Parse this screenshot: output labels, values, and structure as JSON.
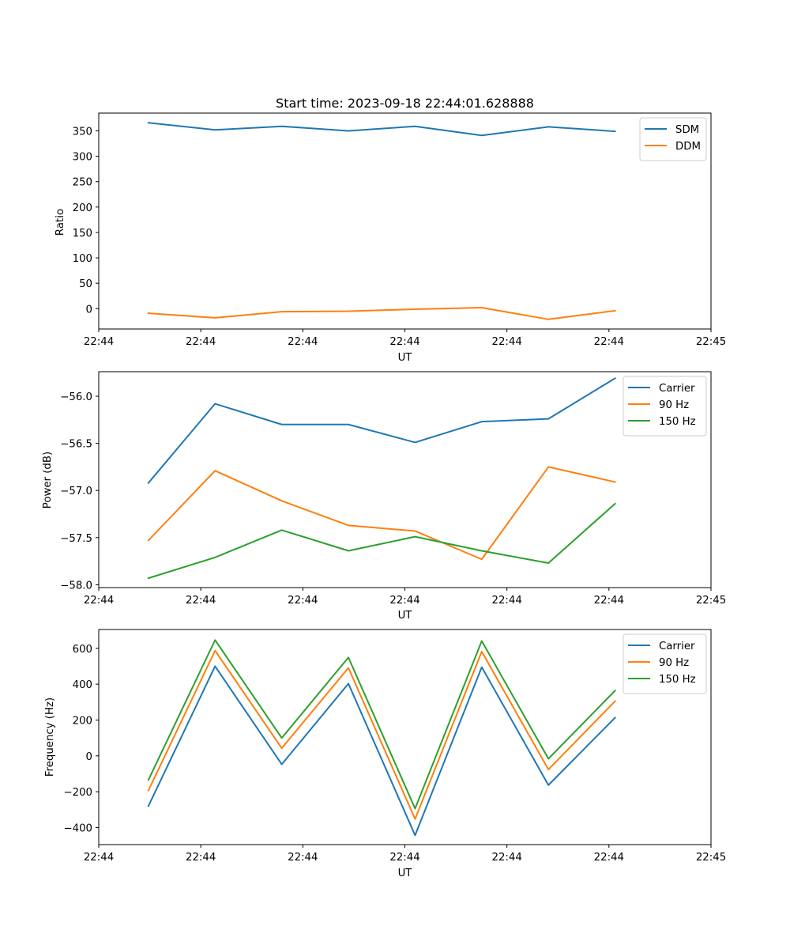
{
  "chart_data": [
    {
      "id": "ratio",
      "type": "line",
      "title": "Start time: 2023-09-18 22:44:01.628888",
      "xlabel": "UT",
      "ylabel": "Ratio",
      "xlim": [
        0,
        9
      ],
      "ylim": [
        -40,
        385
      ],
      "x_ticks": [
        0,
        1.5,
        3,
        4.5,
        6,
        7.5,
        9
      ],
      "x_tick_labels": [
        "22:44",
        "22:44",
        "22:44",
        "22:44",
        "22:44",
        "22:44",
        "22:45"
      ],
      "y_ticks": [
        0,
        50,
        100,
        150,
        200,
        250,
        300,
        350
      ],
      "y_tick_labels": [
        "0",
        "50",
        "100",
        "150",
        "200",
        "250",
        "300",
        "350"
      ],
      "legend_position": "top-right",
      "x": [
        0.73,
        1.71,
        2.69,
        3.67,
        4.65,
        5.63,
        6.61,
        7.59
      ],
      "series": [
        {
          "name": "SDM",
          "color": "#1f77b4",
          "values": [
            366,
            352,
            359,
            350,
            359,
            341,
            358,
            349
          ]
        },
        {
          "name": "DDM",
          "color": "#ff7f0e",
          "values": [
            -9,
            -18,
            -6,
            -5,
            -1,
            2,
            -21,
            -4
          ]
        }
      ]
    },
    {
      "id": "power",
      "type": "line",
      "title": "",
      "xlabel": "UT",
      "ylabel": "Power (dB)",
      "xlim": [
        0,
        9
      ],
      "ylim": [
        -58.03,
        -55.74
      ],
      "x_ticks": [
        0,
        1.5,
        3,
        4.5,
        6,
        7.5,
        9
      ],
      "x_tick_labels": [
        "22:44",
        "22:44",
        "22:44",
        "22:44",
        "22:44",
        "22:44",
        "22:45"
      ],
      "y_ticks": [
        -58.0,
        -57.5,
        -57.0,
        -56.5,
        -56.0
      ],
      "y_tick_labels": [
        "−58.0",
        "−57.5",
        "−57.0",
        "−56.5",
        "−56.0"
      ],
      "legend_position": "top-right",
      "x": [
        0.73,
        1.71,
        2.69,
        3.67,
        4.65,
        5.63,
        6.61,
        7.59
      ],
      "series": [
        {
          "name": "Carrier",
          "color": "#1f77b4",
          "values": [
            -56.92,
            -56.08,
            -56.3,
            -56.3,
            -56.49,
            -56.27,
            -56.24,
            -55.81
          ]
        },
        {
          "name": "90 Hz",
          "color": "#ff7f0e",
          "values": [
            -57.53,
            -56.79,
            -57.11,
            -57.37,
            -57.43,
            -57.73,
            -56.75,
            -56.91
          ]
        },
        {
          "name": "150 Hz",
          "color": "#2ca02c",
          "values": [
            -57.93,
            -57.71,
            -57.42,
            -57.64,
            -57.49,
            -57.64,
            -57.77,
            -57.14
          ]
        }
      ]
    },
    {
      "id": "frequency",
      "type": "line",
      "title": "",
      "xlabel": "UT",
      "ylabel": "Frequency (Hz)",
      "xlim": [
        0,
        9
      ],
      "ylim": [
        -495,
        705
      ],
      "x_ticks": [
        0,
        1.5,
        3,
        4.5,
        6,
        7.5,
        9
      ],
      "x_tick_labels": [
        "22:44",
        "22:44",
        "22:44",
        "22:44",
        "22:44",
        "22:44",
        "22:45"
      ],
      "y_ticks": [
        -400,
        -200,
        0,
        200,
        400,
        600
      ],
      "y_tick_labels": [
        "−400",
        "−200",
        "0",
        "200",
        "400",
        "600"
      ],
      "legend_position": "top-right",
      "x": [
        0.73,
        1.71,
        2.69,
        3.67,
        4.65,
        5.63,
        6.61,
        7.59
      ],
      "series": [
        {
          "name": "Carrier",
          "color": "#1f77b4",
          "values": [
            -280,
            500,
            -47,
            403,
            -443,
            495,
            -163,
            213
          ]
        },
        {
          "name": "90 Hz",
          "color": "#ff7f0e",
          "values": [
            -193,
            587,
            43,
            491,
            -352,
            582,
            -76,
            305
          ]
        },
        {
          "name": "150 Hz",
          "color": "#2ca02c",
          "values": [
            -134,
            646,
            100,
            549,
            -294,
            641,
            -16,
            364
          ]
        }
      ]
    }
  ]
}
